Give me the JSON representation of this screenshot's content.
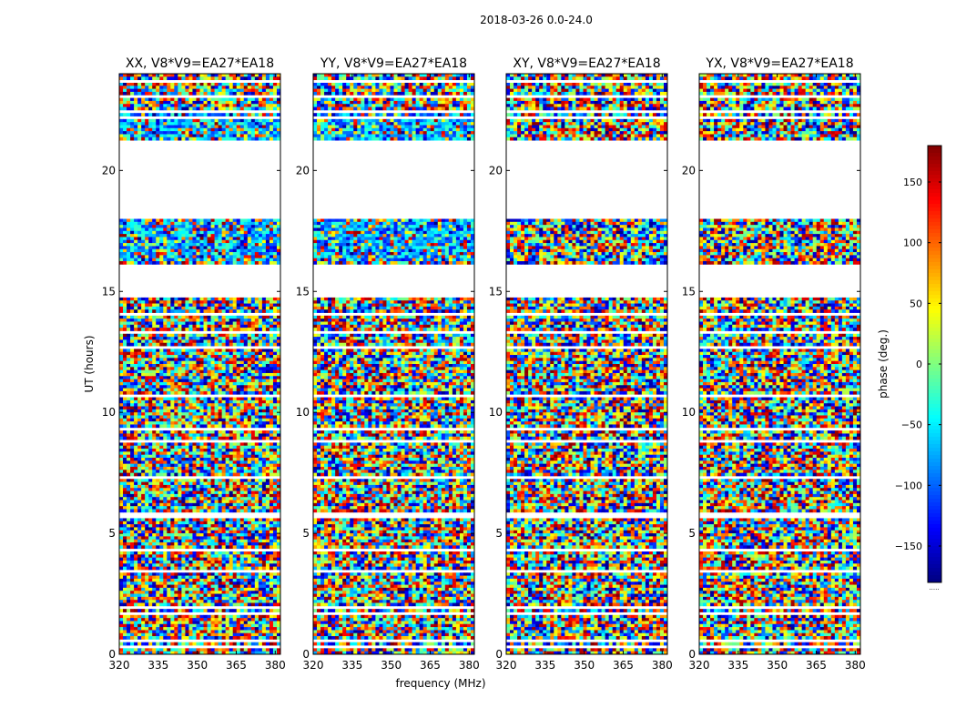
{
  "chart_data": {
    "type": "heatmap",
    "suptitle": "2018-03-26 0.0-24.0",
    "xlabel": "frequency (MHz)",
    "ylabel": "UT (hours)",
    "xlim": [
      320,
      382
    ],
    "ylim": [
      0,
      24
    ],
    "xticks": [
      320,
      335,
      350,
      365,
      380
    ],
    "yticks": [
      0,
      5,
      10,
      15,
      20
    ],
    "panels": [
      {
        "title": "XX, V8*V9=EA27*EA18",
        "blue_bias": 0.55
      },
      {
        "title": "YY, V8*V9=EA27*EA18",
        "blue_bias": 0.6
      },
      {
        "title": "XY, V8*V9=EA27*EA18",
        "blue_bias": 0.0
      },
      {
        "title": "YX, V8*V9=EA27*EA18",
        "blue_bias": 0.0
      }
    ],
    "data_gaps_hours": [
      [
        23.6,
        23.7
      ],
      [
        23.0,
        23.1
      ],
      [
        22.4,
        22.5
      ],
      [
        22.1,
        22.2
      ],
      [
        18.0,
        21.2
      ],
      [
        16.2,
        16.3
      ],
      [
        14.8,
        16.1
      ],
      [
        14.0,
        14.1
      ],
      [
        13.3,
        13.4
      ],
      [
        12.6,
        12.7
      ],
      [
        10.6,
        10.7
      ],
      [
        9.3,
        9.4
      ],
      [
        8.8,
        8.85
      ],
      [
        8.0,
        8.05
      ],
      [
        7.3,
        7.35
      ],
      [
        6.0,
        6.05
      ],
      [
        5.6,
        5.9
      ],
      [
        4.5,
        4.55
      ],
      [
        4.3,
        4.35
      ],
      [
        3.7,
        3.75
      ],
      [
        3.4,
        3.45
      ],
      [
        3.0,
        3.05
      ],
      [
        2.6,
        2.65
      ],
      [
        1.9,
        2.0
      ],
      [
        1.6,
        1.7
      ],
      [
        1.2,
        1.25
      ],
      [
        0.85,
        0.9
      ],
      [
        0.55,
        0.6
      ],
      [
        0.3,
        0.35
      ]
    ],
    "colorbar": {
      "label": "phase (deg.)",
      "range": [
        -180,
        180
      ],
      "ticks": [
        -150,
        -100,
        -50,
        0,
        50,
        100,
        150
      ],
      "tick_labels": [
        "−150",
        "−100",
        "−50",
        "0",
        "50",
        "100",
        "150"
      ],
      "colormap": "jet",
      "note": "....."
    }
  }
}
